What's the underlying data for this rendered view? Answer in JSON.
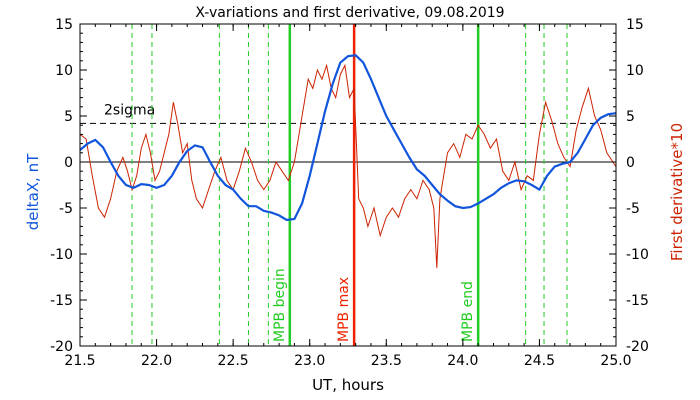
{
  "chart_data": {
    "type": "line",
    "title": "X-variations and first derivative, 09.08.2019",
    "xlabel": "UT, hours",
    "ylabel_left": "deltaX, nT",
    "ylabel_right": "First derivative*10",
    "xlim": [
      21.5,
      25.0
    ],
    "ylim_left": [
      -20,
      15
    ],
    "ylim_right": [
      -20,
      15
    ],
    "x_ticks": [
      21.5,
      22.0,
      22.5,
      23.0,
      23.5,
      24.0,
      24.5,
      25.0
    ],
    "x_tick_labels": [
      "21.5",
      "22.0",
      "22.5",
      "23.0",
      "23.5",
      "24.0",
      "24.5",
      "25.0"
    ],
    "y_ticks": [
      -20,
      -15,
      -10,
      -5,
      0,
      5,
      10,
      15
    ],
    "y_tick_labels": [
      "-20",
      "-15",
      "-10",
      "-5",
      "0",
      "5",
      "10",
      "15"
    ],
    "colors": {
      "deltaX": "#1155dd",
      "derivative": "#cc2200",
      "markers": "#22cc22",
      "max_marker": "#ee2200",
      "axis": "#000000"
    },
    "threshold": {
      "label": "2sigma",
      "value": 4.2
    },
    "zero_line": 0,
    "dashed_markers_x": [
      21.84,
      21.97,
      22.41,
      22.6,
      22.73,
      24.41,
      24.53,
      24.68
    ],
    "vertical_markers": [
      {
        "label": "MPB begin",
        "x": 22.87,
        "color": "#22cc22"
      },
      {
        "label": "MPB max",
        "x": 23.29,
        "color": "#ee2200"
      },
      {
        "label": "MPB end",
        "x": 24.1,
        "color": "#22cc22"
      }
    ],
    "series": [
      {
        "name": "deltaX",
        "axis": "left",
        "x": [
          21.5,
          21.55,
          21.6,
          21.65,
          21.7,
          21.75,
          21.8,
          21.85,
          21.9,
          21.95,
          22.0,
          22.05,
          22.1,
          22.15,
          22.2,
          22.25,
          22.3,
          22.35,
          22.4,
          22.45,
          22.5,
          22.55,
          22.6,
          22.65,
          22.7,
          22.75,
          22.8,
          22.85,
          22.9,
          22.95,
          23.0,
          23.05,
          23.1,
          23.15,
          23.2,
          23.25,
          23.3,
          23.35,
          23.4,
          23.45,
          23.5,
          23.55,
          23.6,
          23.65,
          23.7,
          23.75,
          23.8,
          23.85,
          23.9,
          23.95,
          24.0,
          24.05,
          24.1,
          24.15,
          24.2,
          24.25,
          24.3,
          24.35,
          24.4,
          24.45,
          24.5,
          24.55,
          24.6,
          24.65,
          24.7,
          24.75,
          24.8,
          24.85,
          24.9,
          24.95,
          25.0
        ],
        "values": [
          1.3,
          2.0,
          2.4,
          1.6,
          0.0,
          -1.5,
          -2.5,
          -2.8,
          -2.4,
          -2.5,
          -2.8,
          -2.5,
          -1.5,
          0.0,
          1.2,
          1.8,
          1.6,
          0.0,
          -1.5,
          -2.5,
          -3.0,
          -4.0,
          -4.8,
          -4.8,
          -5.3,
          -5.5,
          -5.8,
          -6.3,
          -6.2,
          -4.5,
          -1.5,
          2.0,
          5.5,
          8.5,
          10.8,
          11.5,
          11.6,
          10.8,
          9.0,
          7.0,
          5.0,
          3.5,
          2.0,
          0.5,
          -0.8,
          -1.5,
          -2.5,
          -3.5,
          -4.2,
          -4.8,
          -5.0,
          -4.9,
          -4.5,
          -4.0,
          -3.5,
          -2.8,
          -2.3,
          -2.0,
          -2.1,
          -2.5,
          -3.0,
          -1.5,
          -0.5,
          -0.2,
          0.0,
          1.0,
          2.5,
          4.0,
          4.8,
          5.2,
          5.3
        ]
      },
      {
        "name": "First derivative*10",
        "axis": "right",
        "x": [
          21.5,
          21.54,
          21.58,
          21.62,
          21.66,
          21.7,
          21.74,
          21.78,
          21.81,
          21.84,
          21.87,
          21.9,
          21.93,
          21.96,
          21.99,
          22.02,
          22.05,
          22.08,
          22.11,
          22.14,
          22.17,
          22.2,
          22.23,
          22.26,
          22.3,
          22.34,
          22.38,
          22.42,
          22.46,
          22.5,
          22.54,
          22.58,
          22.62,
          22.66,
          22.7,
          22.74,
          22.78,
          22.82,
          22.86,
          22.9,
          22.93,
          22.96,
          22.99,
          23.02,
          23.05,
          23.08,
          23.11,
          23.14,
          23.17,
          23.2,
          23.23,
          23.26,
          23.29,
          23.32,
          23.35,
          23.38,
          23.42,
          23.46,
          23.5,
          23.54,
          23.58,
          23.62,
          23.66,
          23.7,
          23.74,
          23.78,
          23.81,
          23.83,
          23.85,
          23.87,
          23.9,
          23.94,
          23.98,
          24.02,
          24.06,
          24.1,
          24.14,
          24.18,
          24.22,
          24.26,
          24.3,
          24.34,
          24.38,
          24.42,
          24.46,
          24.5,
          24.54,
          24.58,
          24.62,
          24.66,
          24.7,
          24.74,
          24.78,
          24.82,
          24.86,
          24.9,
          24.94,
          24.98,
          25.0
        ],
        "values": [
          3.0,
          2.5,
          -1.5,
          -5.0,
          -6.0,
          -4.0,
          -1.0,
          0.5,
          -1.0,
          -3.0,
          -1.5,
          1.5,
          3.0,
          1.0,
          -2.0,
          -1.0,
          1.0,
          3.0,
          6.5,
          4.0,
          1.0,
          2.0,
          -2.0,
          -4.0,
          -5.0,
          -3.0,
          -1.0,
          0.5,
          -2.0,
          -3.0,
          -1.0,
          1.5,
          0.0,
          -2.0,
          -3.0,
          -2.0,
          0.0,
          -1.0,
          -2.0,
          0.0,
          3.0,
          6.0,
          9.0,
          8.0,
          10.0,
          9.0,
          10.5,
          8.0,
          7.0,
          9.5,
          10.5,
          7.0,
          8.0,
          -4.0,
          -5.0,
          -7.0,
          -5.0,
          -8.0,
          -6.0,
          -5.0,
          -6.0,
          -4.0,
          -3.0,
          -4.0,
          -2.0,
          -3.0,
          -5.0,
          -11.5,
          -4.0,
          -2.0,
          1.0,
          2.0,
          0.5,
          3.0,
          2.5,
          4.0,
          3.0,
          1.5,
          2.5,
          -1.0,
          -2.0,
          0.0,
          -3.0,
          -1.5,
          -2.0,
          3.0,
          6.5,
          4.5,
          2.0,
          0.5,
          -0.5,
          3.5,
          6.0,
          8.0,
          5.0,
          3.5,
          1.0,
          0.0,
          -0.5
        ]
      }
    ]
  }
}
